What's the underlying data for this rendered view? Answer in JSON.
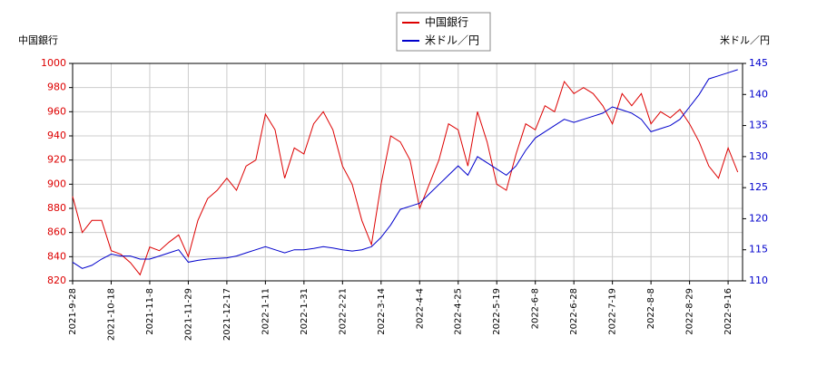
{
  "chart_data": {
    "type": "line",
    "y_label": "中国銀行",
    "y2_label": "米ドル／円",
    "categories": [
      "2021-9-28",
      null,
      null,
      null,
      "2021-10-18",
      null,
      null,
      null,
      "2021-11-8",
      null,
      null,
      null,
      "2021-11-29",
      null,
      null,
      null,
      "2021-12-17",
      null,
      null,
      null,
      "2022-1-11",
      null,
      null,
      null,
      "2022-1-31",
      null,
      null,
      null,
      "2022-2-21",
      null,
      null,
      null,
      "2022-3-14",
      null,
      null,
      null,
      "2022-4-4",
      null,
      null,
      null,
      "2022-4-25",
      null,
      null,
      null,
      "2022-5-19",
      null,
      null,
      null,
      "2022-6-8",
      null,
      null,
      null,
      "2022-6-28",
      null,
      null,
      null,
      "2022-7-19",
      null,
      null,
      null,
      "2022-8-8",
      null,
      null,
      null,
      "2022-8-29",
      null,
      null,
      null,
      "2022-9-16",
      null
    ],
    "series": [
      {
        "name": "中国銀行",
        "color": "#dd0000",
        "axis": "y",
        "values": [
          890,
          860,
          870,
          870,
          845,
          842,
          835,
          825,
          848,
          845,
          852,
          858,
          840,
          870,
          888,
          895,
          905,
          895,
          915,
          920,
          958,
          945,
          905,
          930,
          925,
          950,
          960,
          945,
          915,
          900,
          870,
          850,
          900,
          940,
          935,
          920,
          880,
          900,
          920,
          950,
          945,
          915,
          960,
          935,
          900,
          895,
          925,
          950,
          945,
          965,
          960,
          985,
          975,
          980,
          975,
          965,
          950,
          975,
          965,
          975,
          950,
          960,
          955,
          962,
          950,
          935,
          915,
          905,
          930,
          910
        ]
      },
      {
        "name": "米ドル／円",
        "color": "#0000cc",
        "axis": "y2",
        "values": [
          113,
          112,
          112.5,
          113.5,
          114.3,
          114,
          114,
          113.5,
          113.5,
          114,
          114.5,
          115,
          113,
          113.3,
          113.5,
          113.6,
          113.7,
          114,
          114.5,
          115,
          115.5,
          115,
          114.5,
          115,
          115,
          115.2,
          115.5,
          115.3,
          115,
          114.8,
          115,
          115.5,
          117,
          119,
          121.5,
          122,
          122.5,
          124,
          125.5,
          127,
          128.5,
          127,
          130,
          129,
          128,
          127,
          128.5,
          131,
          133,
          134,
          135,
          136,
          135.5,
          136,
          136.5,
          137,
          138,
          137.5,
          137,
          136,
          134,
          134.5,
          135,
          136,
          138,
          140,
          142.5,
          143,
          143.5,
          144
        ]
      }
    ],
    "ylim": [
      820,
      1000
    ],
    "yticks": [
      820,
      840,
      860,
      880,
      900,
      920,
      940,
      960,
      980,
      1000
    ],
    "y2lim": [
      110,
      145
    ],
    "y2ticks": [
      110,
      115,
      120,
      125,
      130,
      135,
      140,
      145
    ],
    "grid": true,
    "legend": "top"
  }
}
